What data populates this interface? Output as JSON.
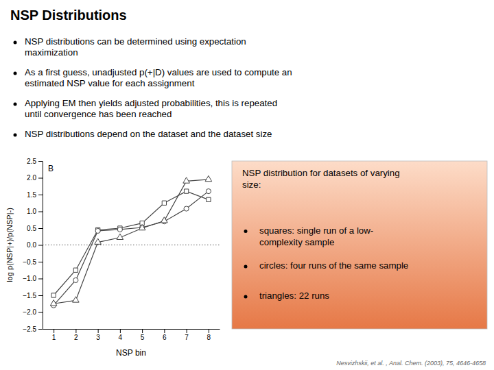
{
  "chart_data": {
    "type": "line",
    "title": "NSP Distributions",
    "annotations": [
      "NSP distributions can be determined using expectation\nmaximization",
      "As a first guess, unadjusted p(+|D) values are used to compute an\nestimated NSP value for each assignment",
      "Applying EM then yields adjusted probabilities, this is repeated\nuntil convergence has been reached",
      "NSP distributions depend on the dataset and the dataset size",
      "B",
      "NSP distribution for datasets of varying\nsize:",
      "squares: single run of a low-\ncomplexity sample",
      "circles: four runs of the same sample",
      "triangles: 22 runs",
      "Nesvizhskii, et al. , Anal. Chem. (2003), 75, 4646-4658"
    ],
    "x_label": "NSP bin",
    "y_label": "log p(NSP|+)/p(NSP|-)",
    "x": [
      1,
      2,
      3,
      4,
      5,
      6,
      7,
      8
    ],
    "series": [
      {
        "values": [
          -1.5,
          -0.75,
          0.45,
          0.5,
          0.65,
          1.25,
          1.6,
          1.35
        ],
        "color": "#444444",
        "marker": "square",
        "line_style": "solid"
      },
      {
        "values": [
          -1.8,
          -1.05,
          0.42,
          0.46,
          0.52,
          0.7,
          1.08,
          1.6
        ],
        "color": "#444444",
        "marker": "circle",
        "line_style": "solid"
      },
      {
        "values": [
          -1.75,
          -1.65,
          0.08,
          0.22,
          0.5,
          0.72,
          1.9,
          1.95
        ],
        "color": "#444444",
        "marker": "triangle",
        "line_style": "solid"
      }
    ],
    "reference_line": 0,
    "xlim": [
      0.5,
      8.5
    ],
    "ylim": [
      -2.5,
      2.5
    ],
    "xticks": [
      1,
      2,
      3,
      4,
      5,
      6,
      7,
      8
    ],
    "yticks": [
      {
        "value": -2.5,
        "label": "−2.5"
      },
      {
        "value": -2.0,
        "label": "−2.0"
      },
      {
        "value": -1.5,
        "label": "−1.5"
      },
      {
        "value": -1.0,
        "label": "−1.0"
      },
      {
        "value": -0.5,
        "label": "−0.5"
      },
      {
        "value": 0.0,
        "label": "0.0"
      },
      {
        "value": 0.5,
        "label": "0.5"
      },
      {
        "value": 1.0,
        "label": "1.0"
      },
      {
        "value": 1.5,
        "label": "1.5"
      },
      {
        "value": 2.0,
        "label": "2.0"
      },
      {
        "value": 2.5,
        "label": "2.5"
      }
    ],
    "grid": false
  }
}
